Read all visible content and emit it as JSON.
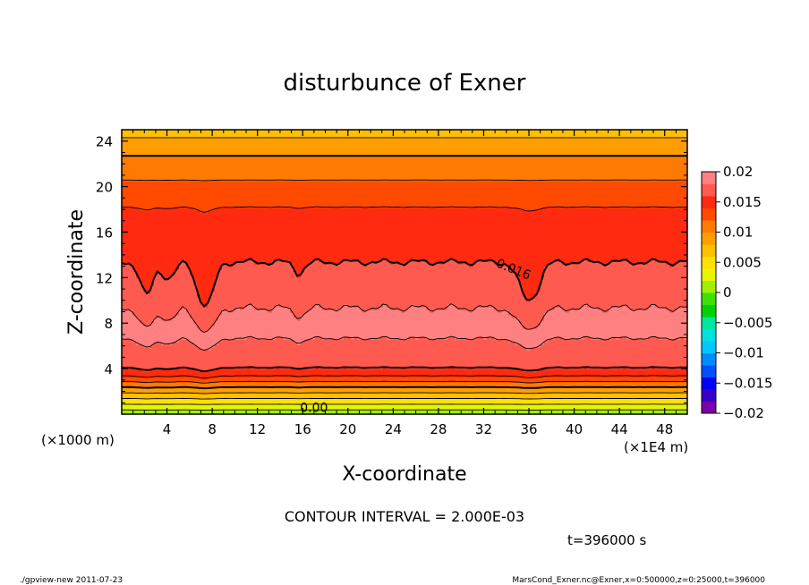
{
  "chart_data": {
    "type": "heatmap",
    "title": "disturbunce of Exner",
    "xlabel": "X-coordinate",
    "ylabel": "Z-coordinate",
    "x_unit": "(×1E4 m)",
    "y_unit": "(×1000 m)",
    "xlim": [
      0,
      50
    ],
    "ylim": [
      0,
      25
    ],
    "x_ticks": [
      4,
      8,
      12,
      16,
      20,
      24,
      28,
      32,
      36,
      40,
      44,
      48
    ],
    "y_ticks": [
      4,
      8,
      12,
      16,
      20,
      24
    ],
    "contour_interval_label": "CONTOUR INTERVAL = 2.000E-03",
    "time_label": "t=396000 s",
    "contour_labels": [
      {
        "text": "0.016",
        "x": 34.5,
        "y": 12.4
      },
      {
        "text": "0.00",
        "x": 17.0,
        "y": 0.2
      }
    ],
    "colorbar": {
      "levels": [
        -0.02,
        -0.018,
        -0.016,
        -0.014,
        -0.012,
        -0.01,
        -0.008,
        -0.006,
        -0.004,
        -0.002,
        0,
        0.002,
        0.004,
        0.006,
        0.008,
        0.01,
        0.012,
        0.014,
        0.016,
        0.018,
        0.02
      ],
      "tick_values": [
        -0.02,
        -0.015,
        -0.01,
        -0.005,
        0,
        0.005,
        0.01,
        0.015,
        0.02
      ],
      "tick_labels": [
        "−0.02",
        "−0.015",
        "−0.01",
        "−0.005",
        "0",
        "0.005",
        "0.01",
        "0.015",
        "0.02"
      ],
      "colors": [
        "#7a00a8",
        "#3a00c8",
        "#0000ff",
        "#0050ff",
        "#008cff",
        "#00c8ff",
        "#00e0e0",
        "#00e6a0",
        "#00d200",
        "#40e000",
        "#9ef000",
        "#e8f400",
        "#ffe000",
        "#ffc000",
        "#ff9e00",
        "#ff7a00",
        "#ff4a00",
        "#ff2a10",
        "#ff5a50",
        "#ff8080"
      ]
    },
    "vertical_profile": {
      "z": [
        0,
        0.5,
        1.0,
        1.5,
        2.0,
        2.5,
        3.0,
        3.5,
        4.0,
        4.5,
        5.0,
        6.0,
        8.0,
        10.0,
        11.5,
        13.0,
        14.0,
        17.0,
        18.5,
        20.0,
        21.5,
        22.5,
        23.5,
        24.3,
        25.0
      ],
      "value": [
        0.0005,
        0.0025,
        0.0045,
        0.0065,
        0.0085,
        0.0105,
        0.0125,
        0.0145,
        0.0158,
        0.0168,
        0.0172,
        0.0178,
        0.0184,
        0.0178,
        0.0172,
        0.0163,
        0.0155,
        0.0148,
        0.0138,
        0.0125,
        0.0112,
        0.0102,
        0.0092,
        0.008,
        0.007
      ]
    },
    "dips": [
      {
        "x": 2.2,
        "depth": 3.0,
        "width": 0.8
      },
      {
        "x": 4.2,
        "depth": 1.5,
        "width": 0.8
      },
      {
        "x": 7.4,
        "depth": 4.2,
        "width": 1.0
      },
      {
        "x": 15.7,
        "depth": 1.0,
        "width": 0.7
      },
      {
        "x": 36.0,
        "depth": 3.5,
        "width": 1.2
      }
    ]
  },
  "footer": {
    "left": "./gpview-new   2011-07-23",
    "right": "MarsCond_Exner.nc@Exner,x=0:500000,z=0:25000,t=396000"
  }
}
